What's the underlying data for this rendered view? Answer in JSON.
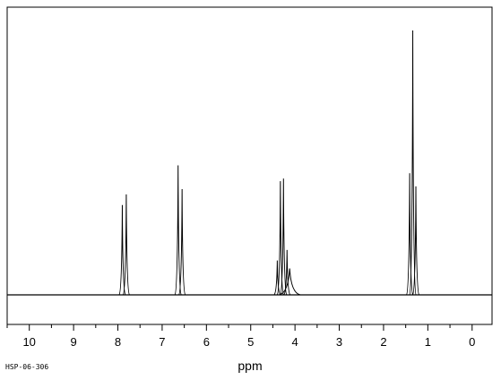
{
  "chart_data": {
    "type": "line",
    "title": "",
    "xlabel": "ppm",
    "ylabel": "",
    "xlim": [
      10.5,
      -0.45
    ],
    "ylim": [
      0,
      100
    ],
    "x_reversed": true,
    "grid": false,
    "ticks": [
      "10",
      "9",
      "8",
      "7",
      "6",
      "5",
      "4",
      "3",
      "2",
      "1",
      "0"
    ],
    "tick_values": [
      10,
      9,
      8,
      7,
      6,
      5,
      4,
      3,
      2,
      1,
      0
    ],
    "minor_tick_step": 0.5,
    "peaks": [
      {
        "ppm": 7.9,
        "height": 34,
        "width": 0.02
      },
      {
        "ppm": 7.81,
        "height": 38,
        "width": 0.02
      },
      {
        "ppm": 6.64,
        "height": 49,
        "width": 0.02
      },
      {
        "ppm": 6.55,
        "height": 40,
        "width": 0.02
      },
      {
        "ppm": 4.4,
        "height": 13,
        "width": 0.02
      },
      {
        "ppm": 4.33,
        "height": 43,
        "width": 0.02
      },
      {
        "ppm": 4.26,
        "height": 44,
        "width": 0.02
      },
      {
        "ppm": 4.18,
        "height": 17,
        "width": 0.02
      },
      {
        "ppm": 4.12,
        "height": 10,
        "width": 0.08
      },
      {
        "ppm": 1.41,
        "height": 46,
        "width": 0.02
      },
      {
        "ppm": 1.34,
        "height": 100,
        "width": 0.02
      },
      {
        "ppm": 1.27,
        "height": 41,
        "width": 0.02
      }
    ]
  },
  "figure": {
    "code": "HSP-06-306"
  }
}
